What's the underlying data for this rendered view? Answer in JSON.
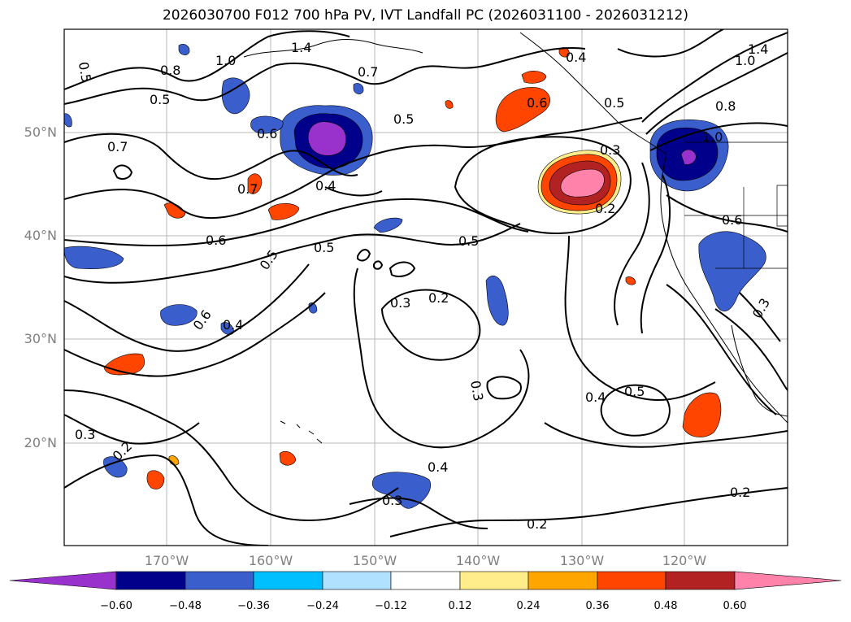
{
  "title": "2026030700 F012 700 hPa PV, IVT Landfall PC (2026031100 - 2026031212)",
  "lat_labels": [
    "50°N",
    "40°N",
    "30°N",
    "20°N"
  ],
  "lon_labels": [
    "170°W",
    "160°W",
    "150°W",
    "140°W",
    "130°W",
    "120°W"
  ],
  "colorbar": {
    "ticks": [
      "−0.60",
      "−0.48",
      "−0.36",
      "−0.24",
      "−0.12",
      "0.12",
      "0.24",
      "0.36",
      "0.48",
      "0.60"
    ],
    "colors": [
      "#9932cc",
      "#00008b",
      "#3a5fcd",
      "#00bfff",
      "#b0e2ff",
      "#ffffff",
      "#ffec8b",
      "#ffa500",
      "#ff4500",
      "#b22222",
      "#ff82ab"
    ]
  },
  "contour_labels": [
    "0.5",
    "0.8",
    "1.0",
    "1.4",
    "0.7",
    "0.5",
    "0.6",
    "0.7",
    "0.4",
    "0.7",
    "0.6",
    "0.4",
    "0.5",
    "1.4",
    "1.0",
    "0.8",
    "1.0",
    "0.3",
    "0.2",
    "0.6",
    "0.5",
    "0.5",
    "0.5",
    "0.3",
    "0.2",
    "0.6",
    "0.4",
    "0.3",
    "0.3",
    "0.4",
    "0.5",
    "0.3",
    "0.2",
    "0.4",
    "0.3",
    "0.2",
    "0.2",
    "0.5",
    "0.6"
  ]
}
